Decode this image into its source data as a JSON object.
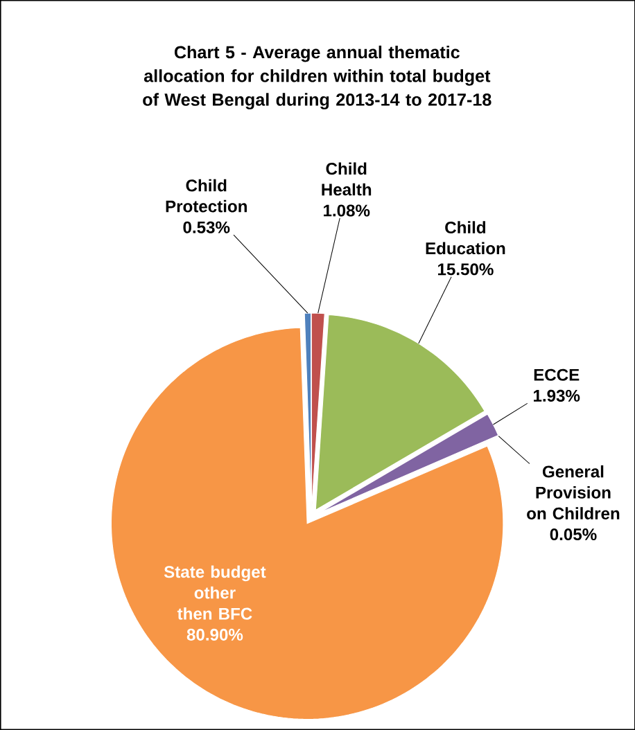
{
  "chart_data": {
    "type": "pie",
    "title": "Chart 5 - Average annual thematic allocation for children within total budget of West Bengal during 2013-14 to 2017-18",
    "categories": [
      "Child Protection",
      "Child Health",
      "Child Education",
      "ECCE",
      "General Provision on Children",
      "State budget other then BFC"
    ],
    "values": [
      0.53,
      1.08,
      15.5,
      1.93,
      0.05,
      80.9
    ],
    "value_labels": [
      "0.53%",
      "1.08%",
      "15.50%",
      "1.93%",
      "0.05%",
      "80.90%"
    ],
    "colors": [
      "#4f81bd",
      "#c0504d",
      "#9bbb59",
      "#8064a2",
      "#4bacc6",
      "#f79646"
    ]
  }
}
